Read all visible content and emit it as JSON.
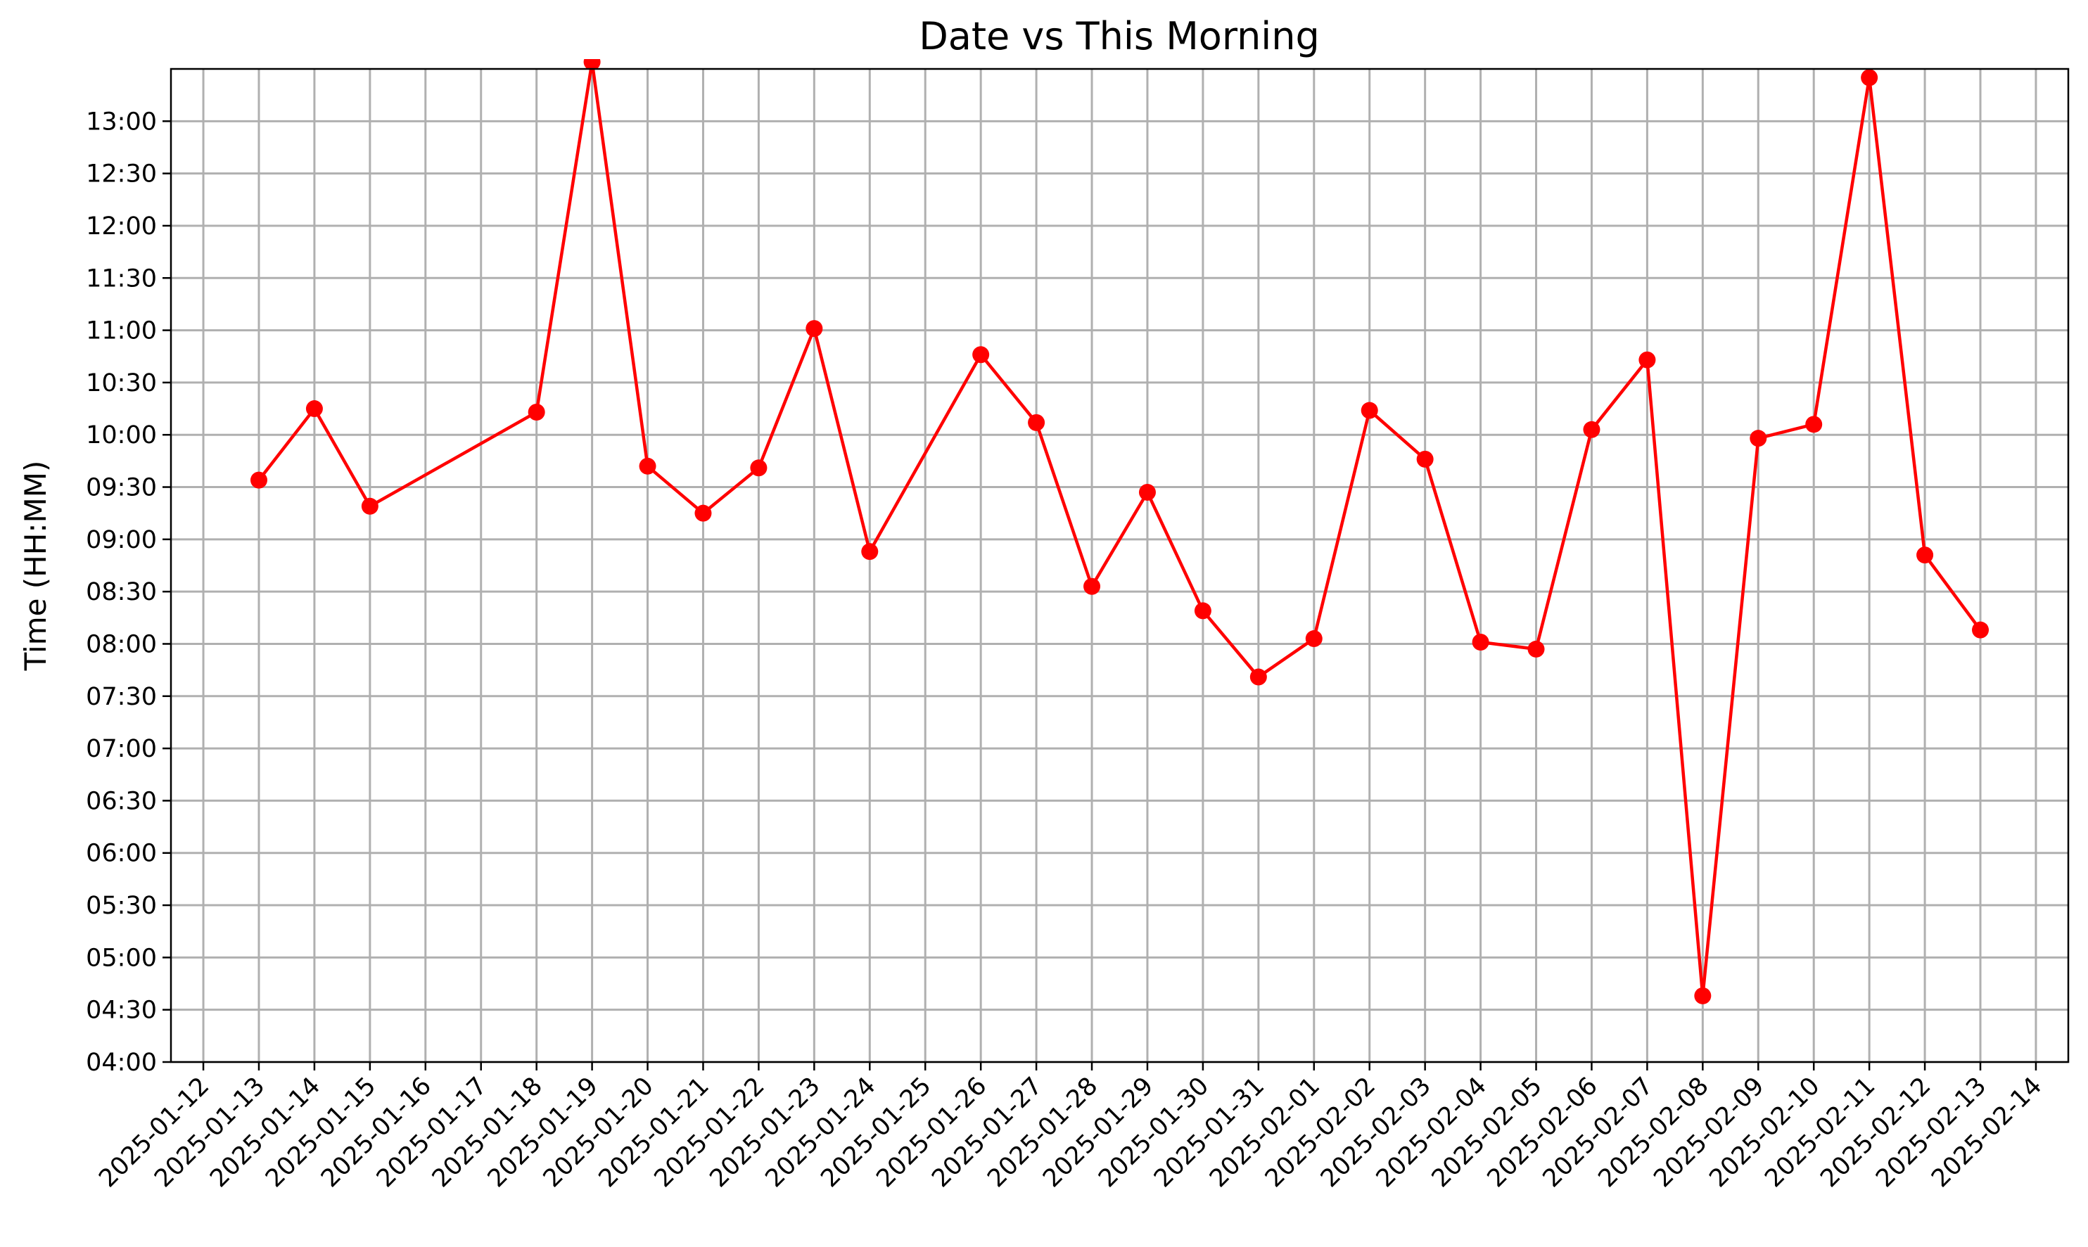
{
  "chart_data": {
    "type": "line",
    "title": "Date vs This Morning",
    "xlabel": "",
    "ylabel": "Time (HH:MM)",
    "grid": true,
    "line_color": "#ff0000",
    "marker_color": "#ff0000",
    "marker": "circle",
    "xlim": [
      "2025-01-11T10:00",
      "2025-02-14T14:00"
    ],
    "ylim": [
      "04:00",
      "13:30"
    ],
    "x_ticks": [
      "2025-01-12",
      "2025-01-13",
      "2025-01-14",
      "2025-01-15",
      "2025-01-16",
      "2025-01-17",
      "2025-01-18",
      "2025-01-19",
      "2025-01-20",
      "2025-01-21",
      "2025-01-22",
      "2025-01-23",
      "2025-01-24",
      "2025-01-25",
      "2025-01-26",
      "2025-01-27",
      "2025-01-28",
      "2025-01-29",
      "2025-01-30",
      "2025-01-31",
      "2025-02-01",
      "2025-02-02",
      "2025-02-03",
      "2025-02-04",
      "2025-02-05",
      "2025-02-06",
      "2025-02-07",
      "2025-02-08",
      "2025-02-09",
      "2025-02-10",
      "2025-02-11",
      "2025-02-12",
      "2025-02-13",
      "2025-02-14"
    ],
    "y_ticks": [
      "04:00",
      "04:30",
      "05:00",
      "05:30",
      "06:00",
      "06:30",
      "07:00",
      "07:30",
      "08:00",
      "08:30",
      "09:00",
      "09:30",
      "10:00",
      "10:30",
      "11:00",
      "11:30",
      "12:00",
      "12:30",
      "13:00"
    ],
    "series": [
      {
        "x": [
          "2025-01-13T00:00",
          "2025-01-14T00:00",
          "2025-01-15T00:00",
          "2025-01-18T00:00",
          "2025-01-19T00:00",
          "2025-01-20T00:00",
          "2025-01-21T00:00",
          "2025-01-22T00:00",
          "2025-01-23T00:00",
          "2025-01-24T00:00",
          "2025-01-26T00:00",
          "2025-01-27T00:00",
          "2025-01-28T00:00",
          "2025-01-29T00:00",
          "2025-01-30T00:00",
          "2025-01-31T00:00",
          "2025-02-01T00:00",
          "2025-02-02T00:00",
          "2025-02-03T00:00",
          "2025-02-04T00:00",
          "2025-02-05T00:00",
          "2025-02-06T00:00",
          "2025-02-07T00:00",
          "2025-02-08T00:00",
          "2025-02-09T00:00",
          "2025-02-10T00:00",
          "2025-02-11T00:00",
          "2025-02-12T00:00",
          "2025-02-13T00:00"
        ],
        "y": [
          "09:34",
          "10:15",
          "09:19",
          "10:13",
          "13:34",
          "09:42",
          "09:15",
          "09:41",
          "11:01",
          "08:53",
          "10:46",
          "10:07",
          "08:33",
          "09:27",
          "08:19",
          "07:41",
          "08:03",
          "10:14",
          "09:46",
          "08:01",
          "07:57",
          "10:03",
          "10:43",
          "04:38",
          "09:58",
          "10:06",
          "13:25",
          "08:51",
          "08:08"
        ]
      }
    ]
  }
}
